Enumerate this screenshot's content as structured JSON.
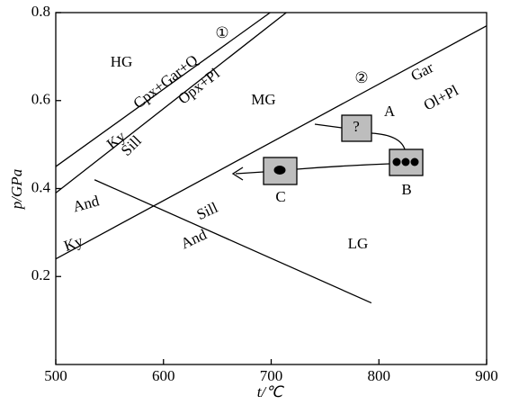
{
  "chart_data": {
    "type": "line",
    "x_label": "t/℃",
    "y_label": "p/GPa",
    "xlim": [
      500,
      900
    ],
    "xticks": [
      500,
      600,
      700,
      800,
      900
    ],
    "ylim": [
      0,
      0.8
    ],
    "yticks": [
      0.2,
      0.4,
      0.6,
      0.8
    ],
    "color": "#000000",
    "series": [
      {
        "x": [
          500,
          699
        ],
        "values": [
          0.45,
          0.8
        ]
      },
      {
        "x": [
          500,
          714
        ],
        "values": [
          0.39,
          0.8
        ]
      },
      {
        "x": [
          500,
          900
        ],
        "values": [
          0.24,
          0.77
        ]
      },
      {
        "x": [
          536,
          793
        ],
        "values": [
          0.42,
          0.14
        ]
      }
    ],
    "annotations": [
      "HG",
      "Cpx+Gar+Q",
      "Opx+Pl",
      "MG",
      "Ky",
      "Ky",
      "Sill",
      "And",
      "Sill",
      "And",
      "Gar",
      "Ol+Pl",
      "①",
      "②",
      "LG",
      "A",
      "B",
      "C",
      "?"
    ]
  }
}
